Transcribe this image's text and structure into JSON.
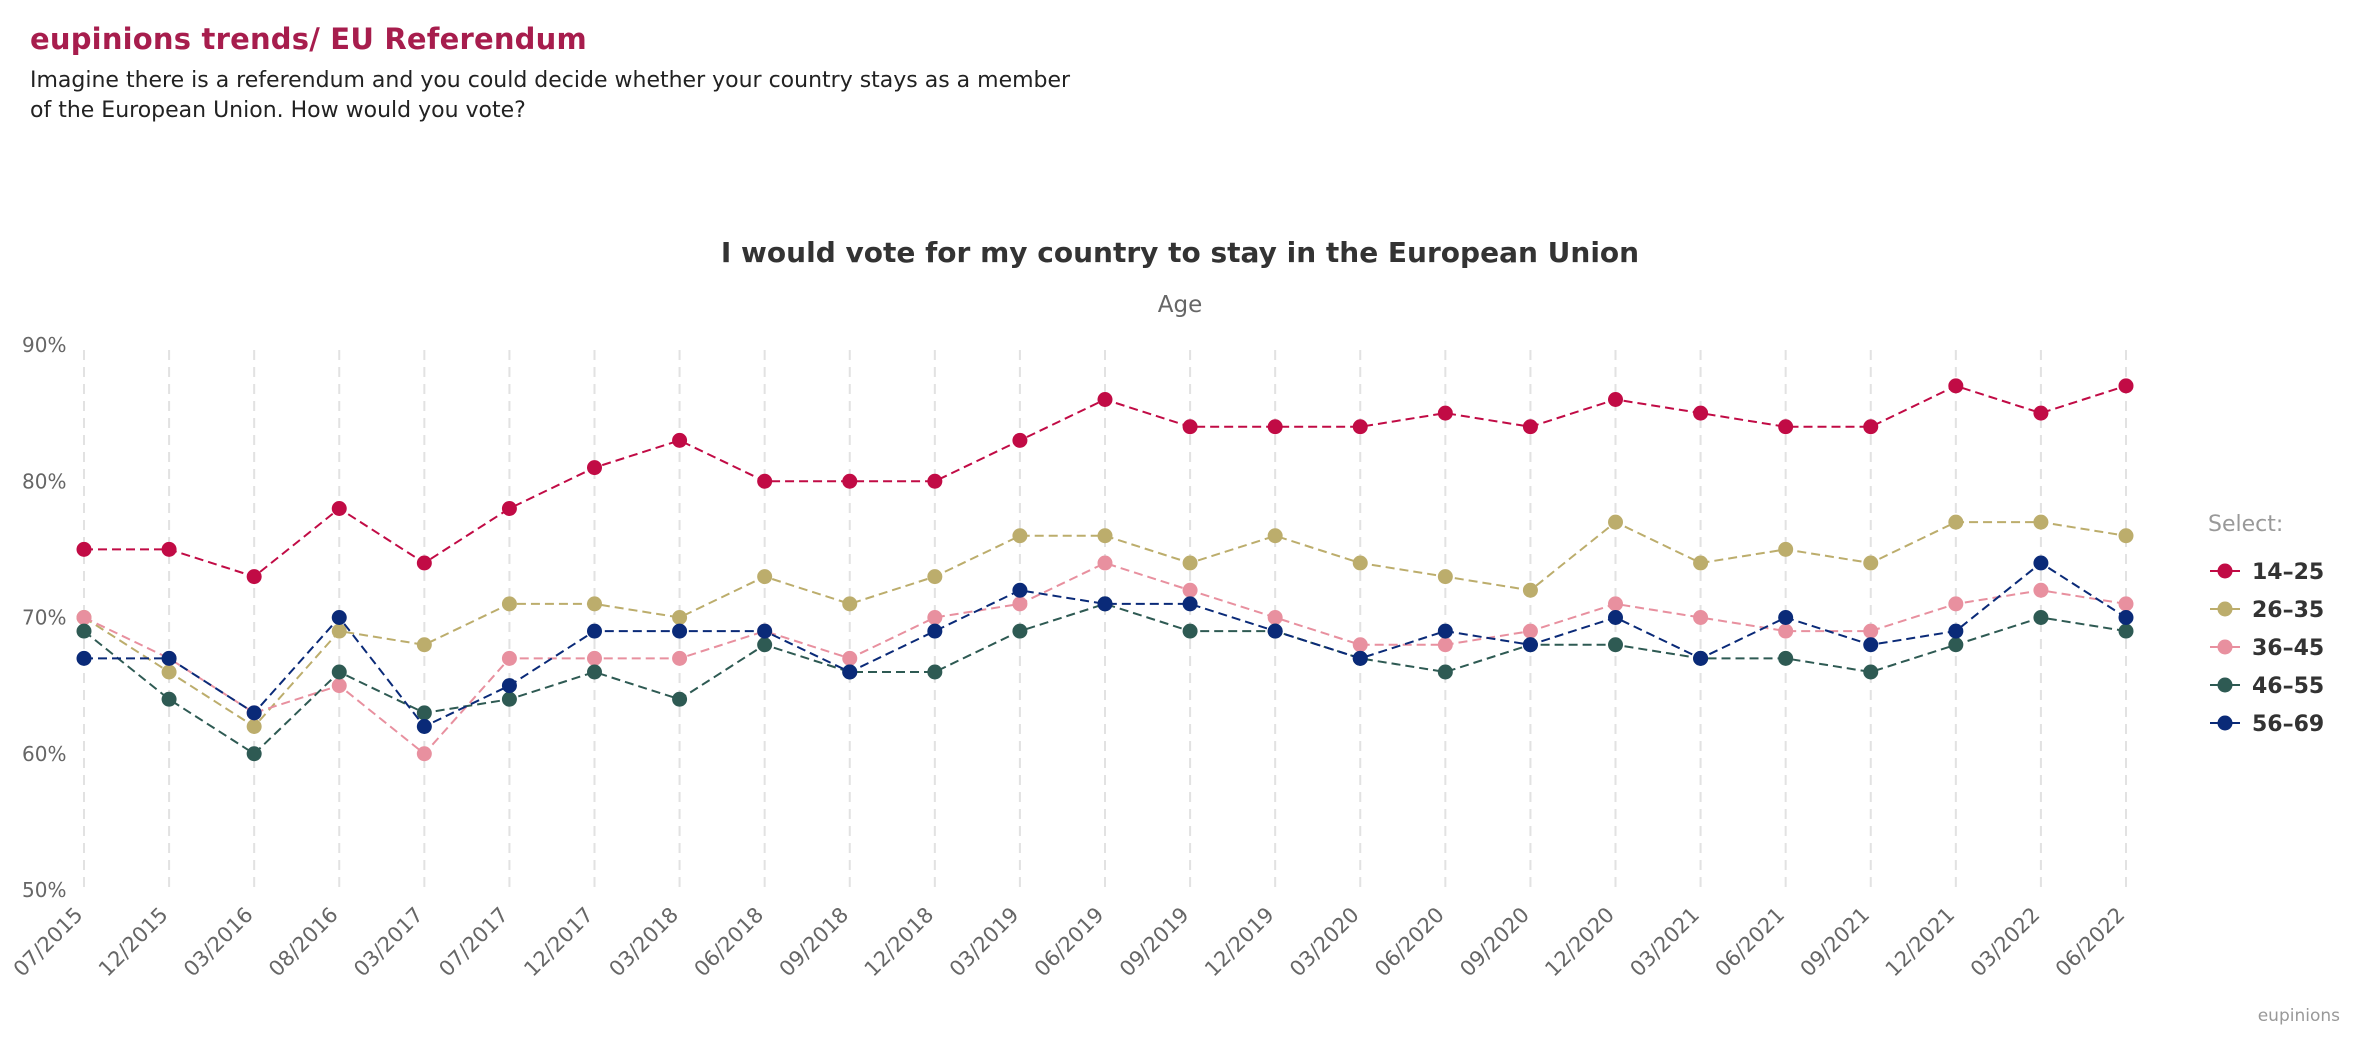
{
  "header": {
    "brand_title": "eupinions trends/ EU Referendum",
    "question": "Imagine there is a referendum and you could decide whether your country stays as a member of the European Union. How would you vote?"
  },
  "credit": "eupinions",
  "chart_data": {
    "type": "line",
    "title": "I would vote for my country to stay in the European Union",
    "subtitle": "Age",
    "xlabel": "",
    "ylabel": "",
    "ylim": [
      50,
      90
    ],
    "yticks": [
      50,
      60,
      70,
      80,
      90
    ],
    "ytick_labels": [
      "50%",
      "60%",
      "70%",
      "80%",
      "90%"
    ],
    "grid": "vertical dashed",
    "legend_title": "Select:",
    "legend_position": "right",
    "categories": [
      "07/2015",
      "12/2015",
      "03/2016",
      "08/2016",
      "03/2017",
      "07/2017",
      "12/2017",
      "03/2018",
      "06/2018",
      "09/2018",
      "12/2018",
      "03/2019",
      "06/2019",
      "09/2019",
      "12/2019",
      "03/2020",
      "06/2020",
      "09/2020",
      "12/2020",
      "03/2021",
      "06/2021",
      "09/2021",
      "12/2021",
      "03/2022",
      "06/2022"
    ],
    "series": [
      {
        "name": "14–25",
        "color": "#c10b45",
        "values": [
          75,
          75,
          73,
          78,
          74,
          78,
          81,
          83,
          80,
          80,
          80,
          83,
          86,
          84,
          84,
          84,
          85,
          84,
          86,
          85,
          84,
          84,
          87,
          85,
          87
        ]
      },
      {
        "name": "26–35",
        "color": "#bcad6c",
        "values": [
          70,
          66,
          62,
          69,
          68,
          71,
          71,
          70,
          73,
          71,
          73,
          76,
          76,
          74,
          76,
          74,
          73,
          72,
          77,
          74,
          75,
          74,
          77,
          77,
          76
        ]
      },
      {
        "name": "36–45",
        "color": "#e8909f",
        "values": [
          70,
          67,
          63,
          65,
          60,
          67,
          67,
          67,
          69,
          67,
          70,
          71,
          74,
          72,
          70,
          68,
          68,
          69,
          71,
          70,
          69,
          69,
          71,
          72,
          71
        ]
      },
      {
        "name": "46–55",
        "color": "#2e5a53",
        "values": [
          69,
          64,
          60,
          66,
          63,
          64,
          66,
          64,
          68,
          66,
          66,
          69,
          71,
          69,
          69,
          67,
          66,
          68,
          68,
          67,
          67,
          66,
          68,
          70,
          69
        ]
      },
      {
        "name": "56–69",
        "color": "#0a2a78",
        "values": [
          67,
          67,
          63,
          70,
          62,
          65,
          69,
          69,
          69,
          66,
          69,
          72,
          71,
          71,
          69,
          67,
          69,
          68,
          70,
          67,
          70,
          68,
          69,
          74,
          70
        ]
      }
    ]
  }
}
